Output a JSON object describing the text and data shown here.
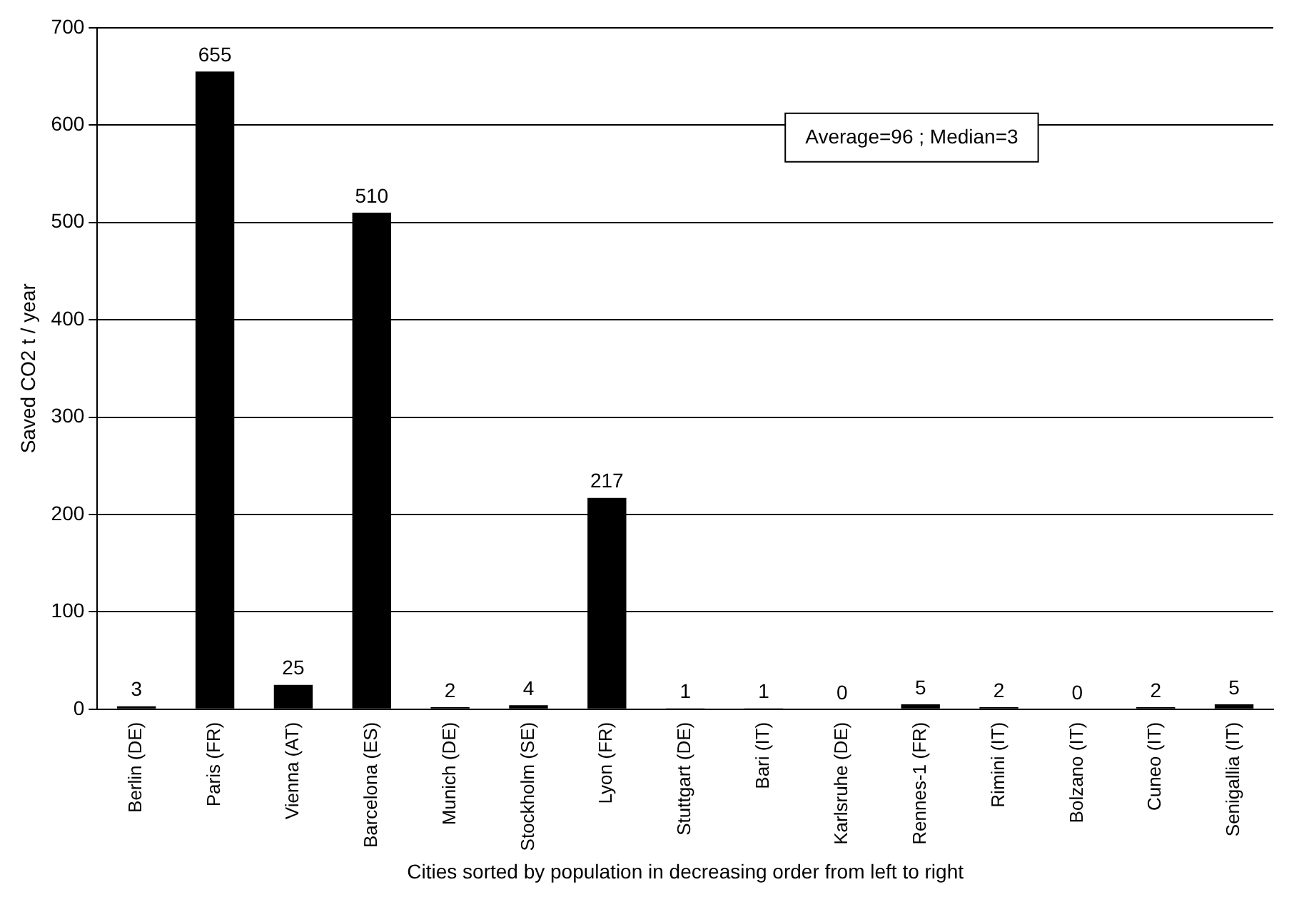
{
  "chart_data": {
    "type": "bar",
    "xlabel": "Cities sorted by population in decreasing order from left to right",
    "ylabel": "Saved CO2 t / year",
    "categories": [
      "Berlin (DE)",
      "Paris (FR)",
      "Vienna (AT)",
      "Barcelona (ES)",
      "Munich (DE)",
      "Stockholm (SE)",
      "Lyon (FR)",
      "Stuttgart (DE)",
      "Bari (IT)",
      "Karlsruhe (DE)",
      "Rennes-1 (FR)",
      "Rimini (IT)",
      "Bolzano (IT)",
      "Cuneo (IT)",
      "Senigallia (IT)"
    ],
    "values": [
      3,
      655,
      25,
      510,
      2,
      4,
      217,
      1,
      1,
      0,
      5,
      2,
      0,
      2,
      5
    ],
    "color": "#000000",
    "ylim": [
      0,
      700
    ],
    "yticks": [
      0,
      100,
      200,
      300,
      400,
      500,
      600,
      700
    ],
    "grid": "y",
    "data_labels": true,
    "legend": false,
    "annotations": [
      "Average=96 ; Median=3"
    ]
  }
}
